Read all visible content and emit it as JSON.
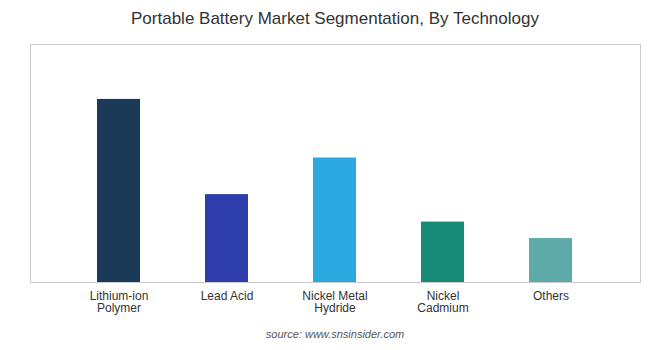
{
  "chart_data": {
    "type": "bar",
    "title": "Portable Battery Market Segmentation, By Technology",
    "caption": "source: www.snsinsider.com",
    "categories": [
      "Lithium-ion\nPolymer",
      "Lead Acid",
      "Nickel Metal\nHydride",
      "Nickel\nCadmium",
      "Others"
    ],
    "values": [
      100,
      48,
      68,
      33,
      24
    ],
    "colors": [
      "#1b3a57",
      "#2d3daa",
      "#29a9e0",
      "#1a8a78",
      "#5eaaa8"
    ],
    "ylim": [
      0,
      130
    ],
    "tick_labels": "x"
  }
}
